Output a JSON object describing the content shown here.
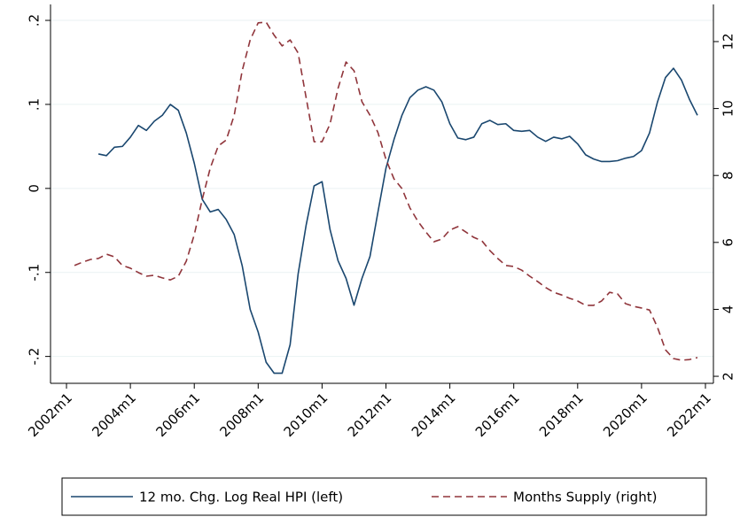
{
  "chart_data": {
    "type": "line",
    "x": [
      "2002m4",
      "2002m7",
      "2002m10",
      "2003m1",
      "2003m4",
      "2003m7",
      "2003m10",
      "2004m1",
      "2004m4",
      "2004m7",
      "2004m10",
      "2005m1",
      "2005m4",
      "2005m7",
      "2005m10",
      "2006m1",
      "2006m4",
      "2006m7",
      "2006m10",
      "2007m1",
      "2007m4",
      "2007m7",
      "2007m10",
      "2008m1",
      "2008m4",
      "2008m7",
      "2008m10",
      "2009m1",
      "2009m4",
      "2009m7",
      "2009m10",
      "2010m1",
      "2010m4",
      "2010m7",
      "2010m10",
      "2011m1",
      "2011m4",
      "2011m7",
      "2011m10",
      "2012m1",
      "2012m4",
      "2012m7",
      "2012m10",
      "2013m1",
      "2013m4",
      "2013m7",
      "2013m10",
      "2014m1",
      "2014m4",
      "2014m7",
      "2014m10",
      "2015m1",
      "2015m4",
      "2015m7",
      "2015m10",
      "2016m1",
      "2016m4",
      "2016m7",
      "2016m10",
      "2017m1",
      "2017m4",
      "2017m7",
      "2017m10",
      "2018m1",
      "2018m4",
      "2018m7",
      "2018m10",
      "2019m1",
      "2019m4",
      "2019m7",
      "2019m10",
      "2020m1",
      "2020m4",
      "2020m7",
      "2020m10",
      "2021m1",
      "2021m4",
      "2021m7",
      "2021m10"
    ],
    "series": [
      {
        "name": "12 mo. Chg. Log Real HPI (left)",
        "color": "#1a476f",
        "dash": false,
        "values": [
          null,
          null,
          null,
          0.041,
          0.039,
          0.049,
          0.05,
          0.061,
          0.075,
          0.069,
          0.08,
          0.087,
          0.1,
          0.093,
          0.066,
          0.03,
          -0.013,
          -0.028,
          -0.025,
          -0.037,
          -0.055,
          -0.092,
          -0.144,
          -0.171,
          -0.207,
          -0.22,
          -0.22,
          -0.186,
          -0.102,
          -0.044,
          0.003,
          0.008,
          -0.049,
          -0.086,
          -0.107,
          -0.139,
          -0.107,
          -0.081,
          -0.028,
          0.024,
          0.058,
          0.087,
          0.108,
          0.117,
          0.121,
          0.117,
          0.103,
          0.077,
          0.06,
          0.058,
          0.061,
          0.077,
          0.081,
          0.076,
          0.077,
          0.069,
          0.068,
          0.069,
          0.061,
          0.056,
          0.061,
          0.059,
          0.062,
          0.053,
          0.04,
          0.035,
          0.032,
          0.032,
          0.033,
          0.036,
          0.038,
          0.045,
          0.066,
          0.103,
          0.132,
          0.143,
          0.129,
          0.106,
          0.087
        ]
      },
      {
        "name": "Months Supply (right)",
        "color": "#90353b",
        "dash": true,
        "axis": "y2",
        "values": [
          5.31,
          5.41,
          5.49,
          5.52,
          5.65,
          5.57,
          5.31,
          5.23,
          5.1,
          4.99,
          5.02,
          4.94,
          4.88,
          4.99,
          5.44,
          6.23,
          7.29,
          8.22,
          8.88,
          9.06,
          9.8,
          11.13,
          12.05,
          12.56,
          12.58,
          12.19,
          11.87,
          12.05,
          11.66,
          10.33,
          9.01,
          9.01,
          9.54,
          10.6,
          11.39,
          11.13,
          10.2,
          9.8,
          9.28,
          8.48,
          7.9,
          7.61,
          7.03,
          6.63,
          6.31,
          6.02,
          6.1,
          6.37,
          6.47,
          6.31,
          6.15,
          6.05,
          5.76,
          5.52,
          5.31,
          5.28,
          5.17,
          4.99,
          4.83,
          4.65,
          4.51,
          4.43,
          4.33,
          4.25,
          4.12,
          4.12,
          4.25,
          4.51,
          4.46,
          4.17,
          4.09,
          4.04,
          3.98,
          3.46,
          2.79,
          2.53,
          2.48,
          2.5,
          2.56
        ]
      }
    ],
    "xlim": [
      "2001m7",
      "2022m4"
    ],
    "xticks": [
      "2002m1",
      "2004m1",
      "2006m1",
      "2008m1",
      "2010m1",
      "2012m1",
      "2014m1",
      "2016m1",
      "2018m1",
      "2020m1",
      "2022m1"
    ],
    "ylim": [
      -0.232,
      0.219
    ],
    "yticks": [
      {
        "value": -0.2,
        "label": "-.2"
      },
      {
        "value": -0.1,
        "label": "-.1"
      },
      0,
      {
        "value": 0.1,
        "label": ".1"
      },
      {
        "value": 0.2,
        "label": ".2"
      }
    ],
    "y2lim": [
      1.79,
      13.11
    ],
    "y2ticks": [
      2,
      4,
      6,
      8,
      10,
      12
    ],
    "grid": true,
    "legend": "bottom"
  }
}
